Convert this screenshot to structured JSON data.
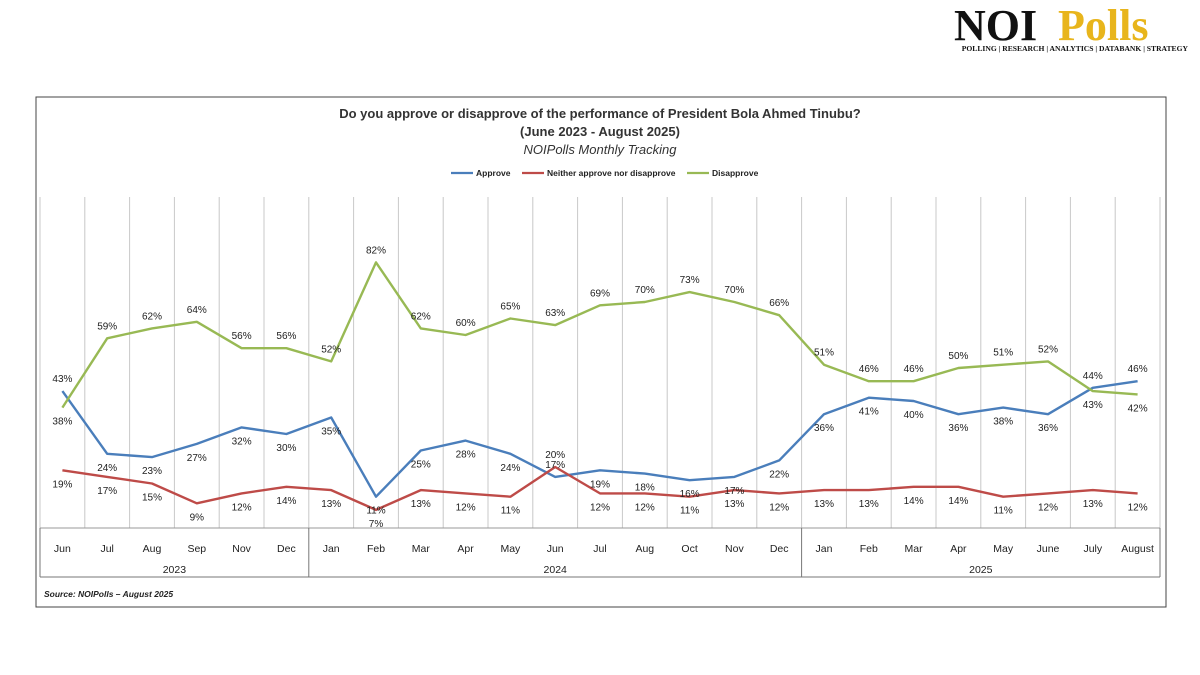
{
  "brand": {
    "logo_text_dark": "NOI",
    "logo_text_gold": "Polls",
    "tagline": "POLLING | RESEARCH | ANALYTICS | DATABANK | STRATEGY",
    "gold": "#E8B51C"
  },
  "chart_data": {
    "type": "line",
    "title": "Do you approve or disapprove of the performance of President Bola Ahmed Tinubu?",
    "subtitle": "(June 2023 - August 2025)",
    "subtitle2": "NOIPolls Monthly Tracking",
    "source": "Source: NOIPolls –  August  2025",
    "legend_position": "top",
    "grid": "vertical",
    "ylim": [
      0,
      100
    ],
    "categories": [
      "Jun",
      "Jul",
      "Aug",
      "Sep",
      "Nov",
      "Dec",
      "Jan",
      "Feb",
      "Mar",
      "Apr",
      "May",
      "Jun",
      "Jul",
      "Aug",
      "Oct",
      "Nov",
      "Dec",
      "Jan",
      "Feb",
      "Mar",
      "Apr",
      "May",
      "June",
      "July",
      "August"
    ],
    "years": [
      {
        "label": "2023",
        "start": 0,
        "end": 5
      },
      {
        "label": "2024",
        "start": 6,
        "end": 16
      },
      {
        "label": "2025",
        "start": 17,
        "end": 24
      }
    ],
    "series": [
      {
        "name": "Approve",
        "color": "#4A7EBB",
        "values": [
          43,
          24,
          23,
          27,
          32,
          30,
          35,
          11,
          25,
          28,
          24,
          17,
          19,
          18,
          16,
          17,
          22,
          36,
          41,
          40,
          36,
          38,
          36,
          44,
          46
        ]
      },
      {
        "name": "Neither approve nor disapprove",
        "color": "#BE4B48",
        "values": [
          19,
          17,
          15,
          9,
          12,
          14,
          13,
          7,
          13,
          12,
          11,
          20,
          12,
          12,
          11,
          13,
          12,
          13,
          13,
          14,
          14,
          11,
          12,
          13,
          12
        ]
      },
      {
        "name": "Disapprove",
        "color": "#98B954",
        "values": [
          38,
          59,
          62,
          64,
          56,
          56,
          52,
          82,
          62,
          60,
          65,
          63,
          69,
          70,
          73,
          70,
          66,
          51,
          46,
          46,
          50,
          51,
          52,
          43,
          42
        ]
      }
    ]
  }
}
